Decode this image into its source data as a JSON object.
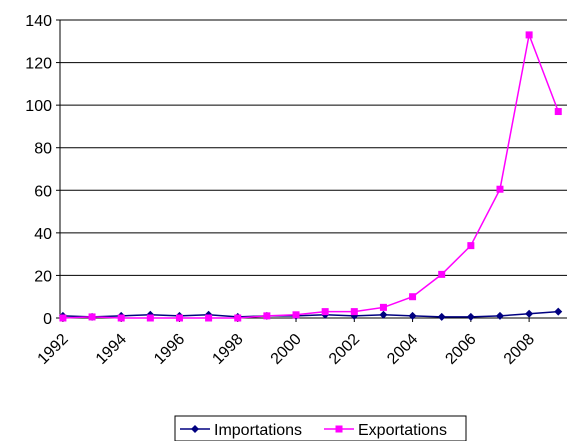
{
  "chart_data": {
    "type": "line",
    "title": "",
    "xlabel": "",
    "ylabel": "",
    "ylim": [
      0,
      140
    ],
    "yticks": [
      0,
      20,
      40,
      60,
      80,
      100,
      120,
      140
    ],
    "x": [
      1992,
      1993,
      1994,
      1995,
      1996,
      1997,
      1998,
      1999,
      2000,
      2001,
      2002,
      2003,
      2004,
      2005,
      2006,
      2007,
      2008,
      2009
    ],
    "xtick_labels": [
      "1992",
      "1994",
      "1996",
      "1998",
      "2000",
      "2002",
      "2004",
      "2006",
      "2008"
    ],
    "grid": "horizontal",
    "legend_position": "bottom",
    "series": [
      {
        "name": "Importations",
        "color": "#000080",
        "marker": "diamond",
        "values": [
          1,
          0.5,
          1,
          1.5,
          1,
          1.5,
          0.5,
          1,
          1,
          1.5,
          1,
          1.5,
          1,
          0.5,
          0.5,
          1,
          2,
          3
        ]
      },
      {
        "name": "Exportations",
        "color": "#ff00ff",
        "marker": "square",
        "values": [
          0,
          0.5,
          0,
          0,
          0,
          0,
          0,
          1,
          1.5,
          3,
          3,
          5,
          10,
          20.5,
          34,
          60.5,
          133,
          97
        ]
      }
    ]
  }
}
